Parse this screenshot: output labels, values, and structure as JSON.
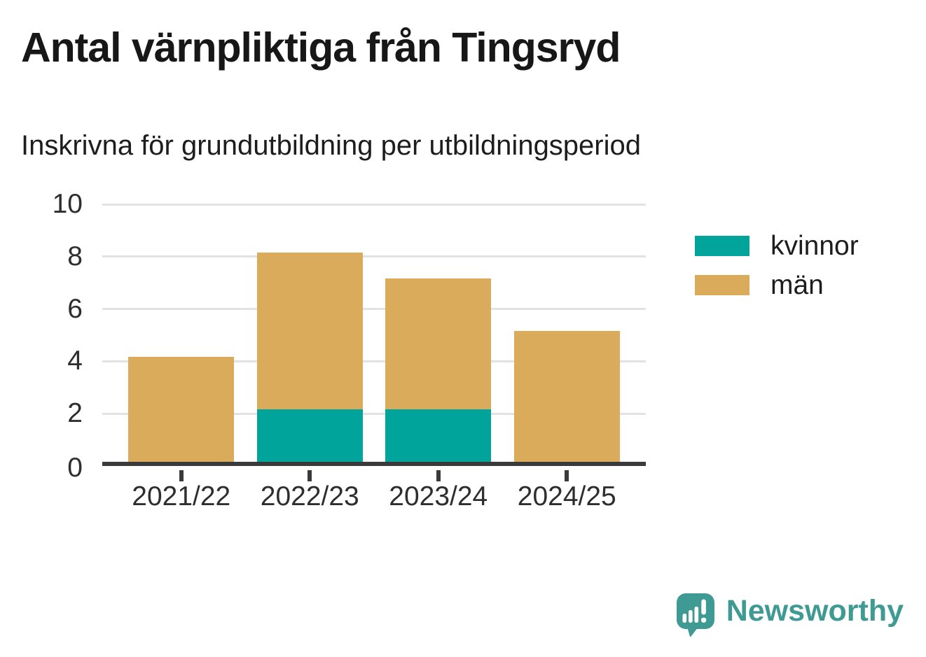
{
  "title": "Antal värnpliktiga från Tingsryd",
  "subtitle": "Inskrivna för grundutbildning per utbildningsperiod",
  "chart_data": {
    "type": "bar",
    "stacked": true,
    "title": "Antal värnpliktiga från Tingsryd",
    "subtitle": "Inskrivna för grundutbildning per utbildningsperiod",
    "categories": [
      "2021/22",
      "2022/23",
      "2023/24",
      "2024/25"
    ],
    "series": [
      {
        "name": "kvinnor",
        "color": "#00a49a",
        "values": [
          0,
          2,
          2,
          0
        ]
      },
      {
        "name": "män",
        "color": "#d9ab5a",
        "values": [
          4,
          6,
          5,
          5
        ]
      }
    ],
    "totals": [
      4,
      8,
      7,
      5
    ],
    "xlabel": "",
    "ylabel": "",
    "ylim": [
      0,
      10
    ],
    "yticks": [
      0,
      2,
      4,
      6,
      8,
      10
    ],
    "grid": true,
    "legend_position": "right-top"
  },
  "colors": {
    "background": "#ffffff",
    "gridline": "#e2e2e2",
    "axis": "#3a3a3a",
    "text": "#1d1d1d",
    "brand_teal": "#3f9a94"
  },
  "branding": {
    "wordmark": "Newsworthy"
  }
}
